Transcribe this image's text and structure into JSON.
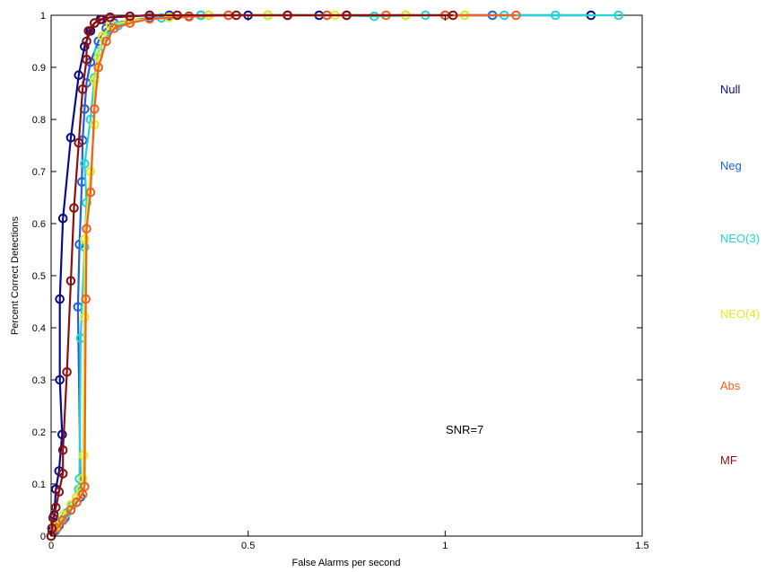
{
  "chart_data": {
    "type": "line",
    "xlabel": "False Alarms per second",
    "ylabel": "Percent Correct Detections",
    "xlim": [
      0,
      1.5
    ],
    "ylim": [
      0,
      1
    ],
    "xticks": [
      "0",
      "0.5",
      "1",
      "1.5"
    ],
    "xtick_values": [
      0,
      0.5,
      1,
      1.5
    ],
    "yticks": [
      "0",
      "0.1",
      "0.2",
      "0.3",
      "0.4",
      "0.5",
      "0.6",
      "0.7",
      "0.8",
      "0.9",
      "1"
    ],
    "ytick_values": [
      0,
      0.1,
      0.2,
      0.3,
      0.4,
      0.5,
      0.6,
      0.7,
      0.8,
      0.9,
      1
    ],
    "grid": false,
    "legend_placement": "right",
    "marker": "circle",
    "annotation": "SNR=7",
    "series": [
      {
        "name": "Null",
        "color": "#0a0a8c",
        "points": [
          [
            0,
            0
          ],
          [
            0.003,
            0.01
          ],
          [
            0.008,
            0.04
          ],
          [
            0.012,
            0.09
          ],
          [
            0.02,
            0.125
          ],
          [
            0.028,
            0.195
          ],
          [
            0.022,
            0.3
          ],
          [
            0.022,
            0.455
          ],
          [
            0.03,
            0.61
          ],
          [
            0.05,
            0.765
          ],
          [
            0.07,
            0.885
          ],
          [
            0.085,
            0.94
          ],
          [
            0.1,
            0.97
          ],
          [
            0.11,
            0.985
          ],
          [
            0.125,
            0.992
          ],
          [
            0.15,
            0.996
          ],
          [
            0.2,
            0.998
          ],
          [
            0.25,
            1
          ],
          [
            0.3,
            1
          ],
          [
            0.35,
            0.998
          ],
          [
            0.38,
            1
          ],
          [
            0.45,
            1
          ],
          [
            0.5,
            1
          ],
          [
            0.6,
            1
          ],
          [
            0.68,
            1
          ],
          [
            0.75,
            1
          ],
          [
            1.0,
            1
          ],
          [
            1.37,
            1
          ]
        ]
      },
      {
        "name": "Neg",
        "color": "#1f5fe0",
        "points": [
          [
            0,
            0
          ],
          [
            0.01,
            0.01
          ],
          [
            0.02,
            0.02
          ],
          [
            0.035,
            0.035
          ],
          [
            0.05,
            0.05
          ],
          [
            0.065,
            0.065
          ],
          [
            0.075,
            0.075
          ],
          [
            0.068,
            0.44
          ],
          [
            0.072,
            0.56
          ],
          [
            0.078,
            0.68
          ],
          [
            0.08,
            0.76
          ],
          [
            0.085,
            0.82
          ],
          [
            0.09,
            0.87
          ],
          [
            0.1,
            0.91
          ],
          [
            0.12,
            0.95
          ],
          [
            0.14,
            0.975
          ],
          [
            0.16,
            0.985
          ],
          [
            0.2,
            0.99
          ],
          [
            0.25,
            0.995
          ],
          [
            0.3,
            0.998
          ],
          [
            0.4,
            1
          ],
          [
            0.55,
            1
          ],
          [
            0.7,
            1
          ],
          [
            0.9,
            1
          ],
          [
            1.12,
            1
          ]
        ]
      },
      {
        "name": "NEO(3)",
        "color": "#22d4d4",
        "points": [
          [
            0,
            0
          ],
          [
            0.01,
            0.015
          ],
          [
            0.025,
            0.03
          ],
          [
            0.04,
            0.045
          ],
          [
            0.055,
            0.06
          ],
          [
            0.065,
            0.075
          ],
          [
            0.07,
            0.09
          ],
          [
            0.072,
            0.11
          ],
          [
            0.075,
            0.38
          ],
          [
            0.085,
            0.555
          ],
          [
            0.09,
            0.64
          ],
          [
            0.085,
            0.715
          ],
          [
            0.1,
            0.8
          ],
          [
            0.11,
            0.88
          ],
          [
            0.12,
            0.93
          ],
          [
            0.14,
            0.96
          ],
          [
            0.17,
            0.98
          ],
          [
            0.2,
            0.99
          ],
          [
            0.28,
            0.995
          ],
          [
            0.38,
            1
          ],
          [
            0.55,
            1
          ],
          [
            0.7,
            1
          ],
          [
            0.82,
            0.998
          ],
          [
            0.95,
            1
          ],
          [
            1.05,
            1
          ],
          [
            1.15,
            1
          ],
          [
            1.28,
            1
          ],
          [
            1.44,
            1
          ]
        ]
      },
      {
        "name": "NEO(4)",
        "color": "#e5ea1c",
        "points": [
          [
            0,
            0
          ],
          [
            0.015,
            0.02
          ],
          [
            0.03,
            0.04
          ],
          [
            0.05,
            0.06
          ],
          [
            0.065,
            0.075
          ],
          [
            0.075,
            0.09
          ],
          [
            0.08,
            0.11
          ],
          [
            0.082,
            0.155
          ],
          [
            0.085,
            0.42
          ],
          [
            0.085,
            0.57
          ],
          [
            0.1,
            0.7
          ],
          [
            0.11,
            0.79
          ],
          [
            0.11,
            0.875
          ],
          [
            0.12,
            0.92
          ],
          [
            0.13,
            0.96
          ],
          [
            0.15,
            0.98
          ],
          [
            0.2,
            0.99
          ],
          [
            0.3,
            0.996
          ],
          [
            0.4,
            1
          ],
          [
            0.55,
            1
          ],
          [
            0.72,
            1
          ],
          [
            0.9,
            1
          ],
          [
            1.05,
            1
          ]
        ]
      },
      {
        "name": "Abs",
        "color": "#f06020",
        "points": [
          [
            0,
            0
          ],
          [
            0.015,
            0.015
          ],
          [
            0.03,
            0.03
          ],
          [
            0.05,
            0.05
          ],
          [
            0.065,
            0.065
          ],
          [
            0.08,
            0.08
          ],
          [
            0.085,
            0.095
          ],
          [
            0.088,
            0.455
          ],
          [
            0.09,
            0.59
          ],
          [
            0.1,
            0.66
          ],
          [
            0.11,
            0.82
          ],
          [
            0.12,
            0.9
          ],
          [
            0.14,
            0.95
          ],
          [
            0.16,
            0.975
          ],
          [
            0.2,
            0.985
          ],
          [
            0.25,
            0.993
          ],
          [
            0.35,
            0.997
          ],
          [
            0.45,
            1
          ],
          [
            0.6,
            1
          ],
          [
            0.7,
            1
          ],
          [
            0.85,
            1
          ],
          [
            1.0,
            1
          ],
          [
            1.18,
            1
          ]
        ]
      },
      {
        "name": "MF",
        "color": "#8b1010",
        "points": [
          [
            0,
            0
          ],
          [
            0.002,
            0.015
          ],
          [
            0.005,
            0.035
          ],
          [
            0.012,
            0.055
          ],
          [
            0.02,
            0.085
          ],
          [
            0.03,
            0.12
          ],
          [
            0.03,
            0.165
          ],
          [
            0.04,
            0.315
          ],
          [
            0.05,
            0.49
          ],
          [
            0.058,
            0.63
          ],
          [
            0.07,
            0.755
          ],
          [
            0.08,
            0.858
          ],
          [
            0.09,
            0.915
          ],
          [
            0.09,
            0.95
          ],
          [
            0.095,
            0.97
          ],
          [
            0.11,
            0.985
          ],
          [
            0.13,
            0.992
          ],
          [
            0.15,
            0.996
          ],
          [
            0.2,
            0.998
          ],
          [
            0.25,
            1
          ],
          [
            0.32,
            1
          ],
          [
            0.47,
            1
          ],
          [
            0.6,
            1
          ],
          [
            0.75,
            1
          ],
          [
            1.02,
            1
          ]
        ]
      }
    ]
  }
}
